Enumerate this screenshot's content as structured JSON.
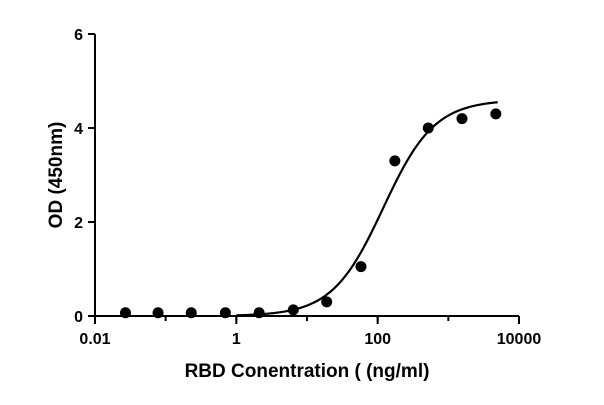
{
  "chart_data": {
    "type": "scatter",
    "xlabel": "RBD Conentration ( (ng/ml)",
    "ylabel": "OD (450nm)",
    "x_scale": "log",
    "xlim": [
      0.01,
      10000
    ],
    "ylim": [
      0,
      6
    ],
    "x_ticks": [
      0.01,
      1,
      100,
      10000
    ],
    "x_tick_labels": [
      "0.01",
      "1",
      "100",
      "10000"
    ],
    "y_ticks": [
      0,
      2,
      4,
      6
    ],
    "y_tick_labels": [
      "0",
      "2",
      "4",
      "6"
    ],
    "grid": false,
    "series": [
      {
        "x": [
          0.027,
          0.078,
          0.23,
          0.7,
          2.1,
          6.4,
          19,
          58,
          175,
          520,
          1560,
          4700
        ],
        "y": [
          0.07,
          0.07,
          0.07,
          0.07,
          0.07,
          0.13,
          0.3,
          1.05,
          3.3,
          4.0,
          4.2,
          4.3
        ]
      }
    ],
    "fit_curve": {
      "model": "sigmoidal (4PL)",
      "bottom": 0.0,
      "top": 4.6,
      "ec50": 120,
      "hill": 1.2,
      "x_range": [
        1,
        5000
      ]
    }
  }
}
